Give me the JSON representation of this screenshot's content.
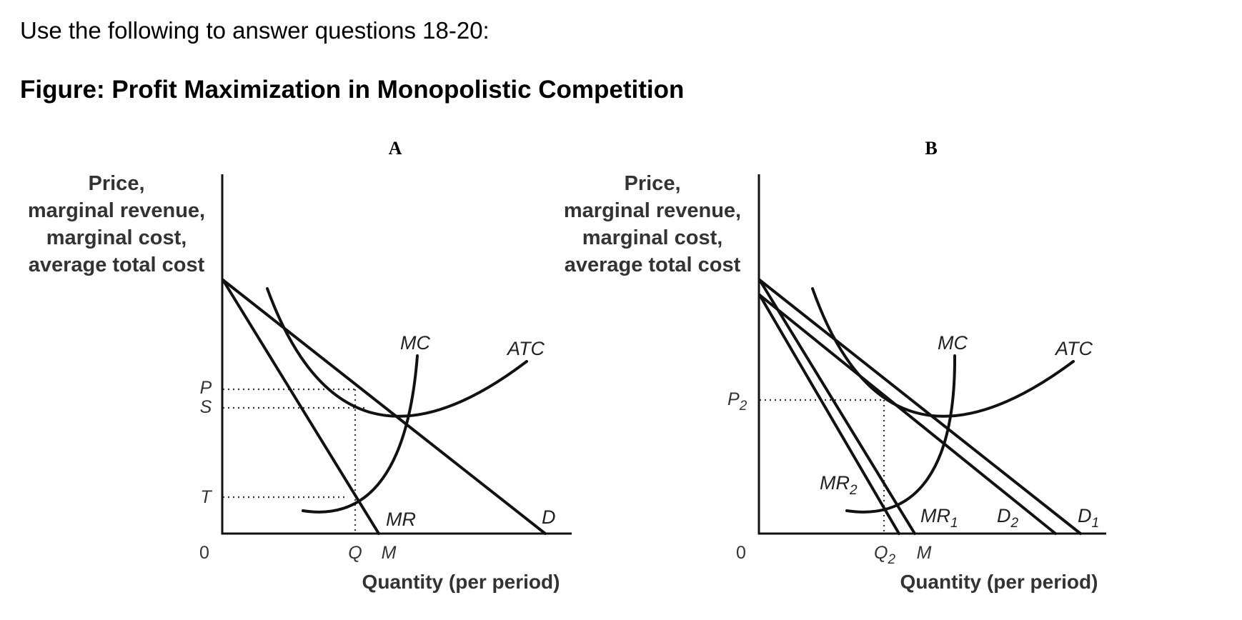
{
  "intro": "Use the following to answer questions 18-20:",
  "title": "Figure: Profit Maximization in Monopolistic Competition",
  "panels": {
    "a": {
      "letter": "A",
      "ylabel": [
        "Price,",
        "marginal revenue,",
        "marginal cost,",
        "average total cost"
      ],
      "xlabel": "Quantity (per period)",
      "origin": "0",
      "curves": {
        "mc": "MC",
        "atc": "ATC",
        "mr": "MR",
        "d": "D"
      },
      "price_ticks": {
        "p": "P",
        "s": "S",
        "t": "T"
      },
      "qty_ticks": {
        "q": "Q",
        "m": "M"
      }
    },
    "b": {
      "letter": "B",
      "ylabel": [
        "Price,",
        "marginal revenue,",
        "marginal cost,",
        "average total cost"
      ],
      "xlabel": "Quantity (per period)",
      "origin": "0",
      "curves": {
        "mc": "MC",
        "atc": "ATC",
        "mr2_main": "MR",
        "mr2_sub": "2",
        "mr1_main": "MR",
        "mr1_sub": "1",
        "d2_main": "D",
        "d2_sub": "2",
        "d1_main": "D",
        "d1_sub": "1"
      },
      "price_ticks": {
        "p2_main": "P",
        "p2_sub": "2"
      },
      "qty_ticks": {
        "q2_main": "Q",
        "q2_sub": "2",
        "m": "M"
      }
    }
  }
}
